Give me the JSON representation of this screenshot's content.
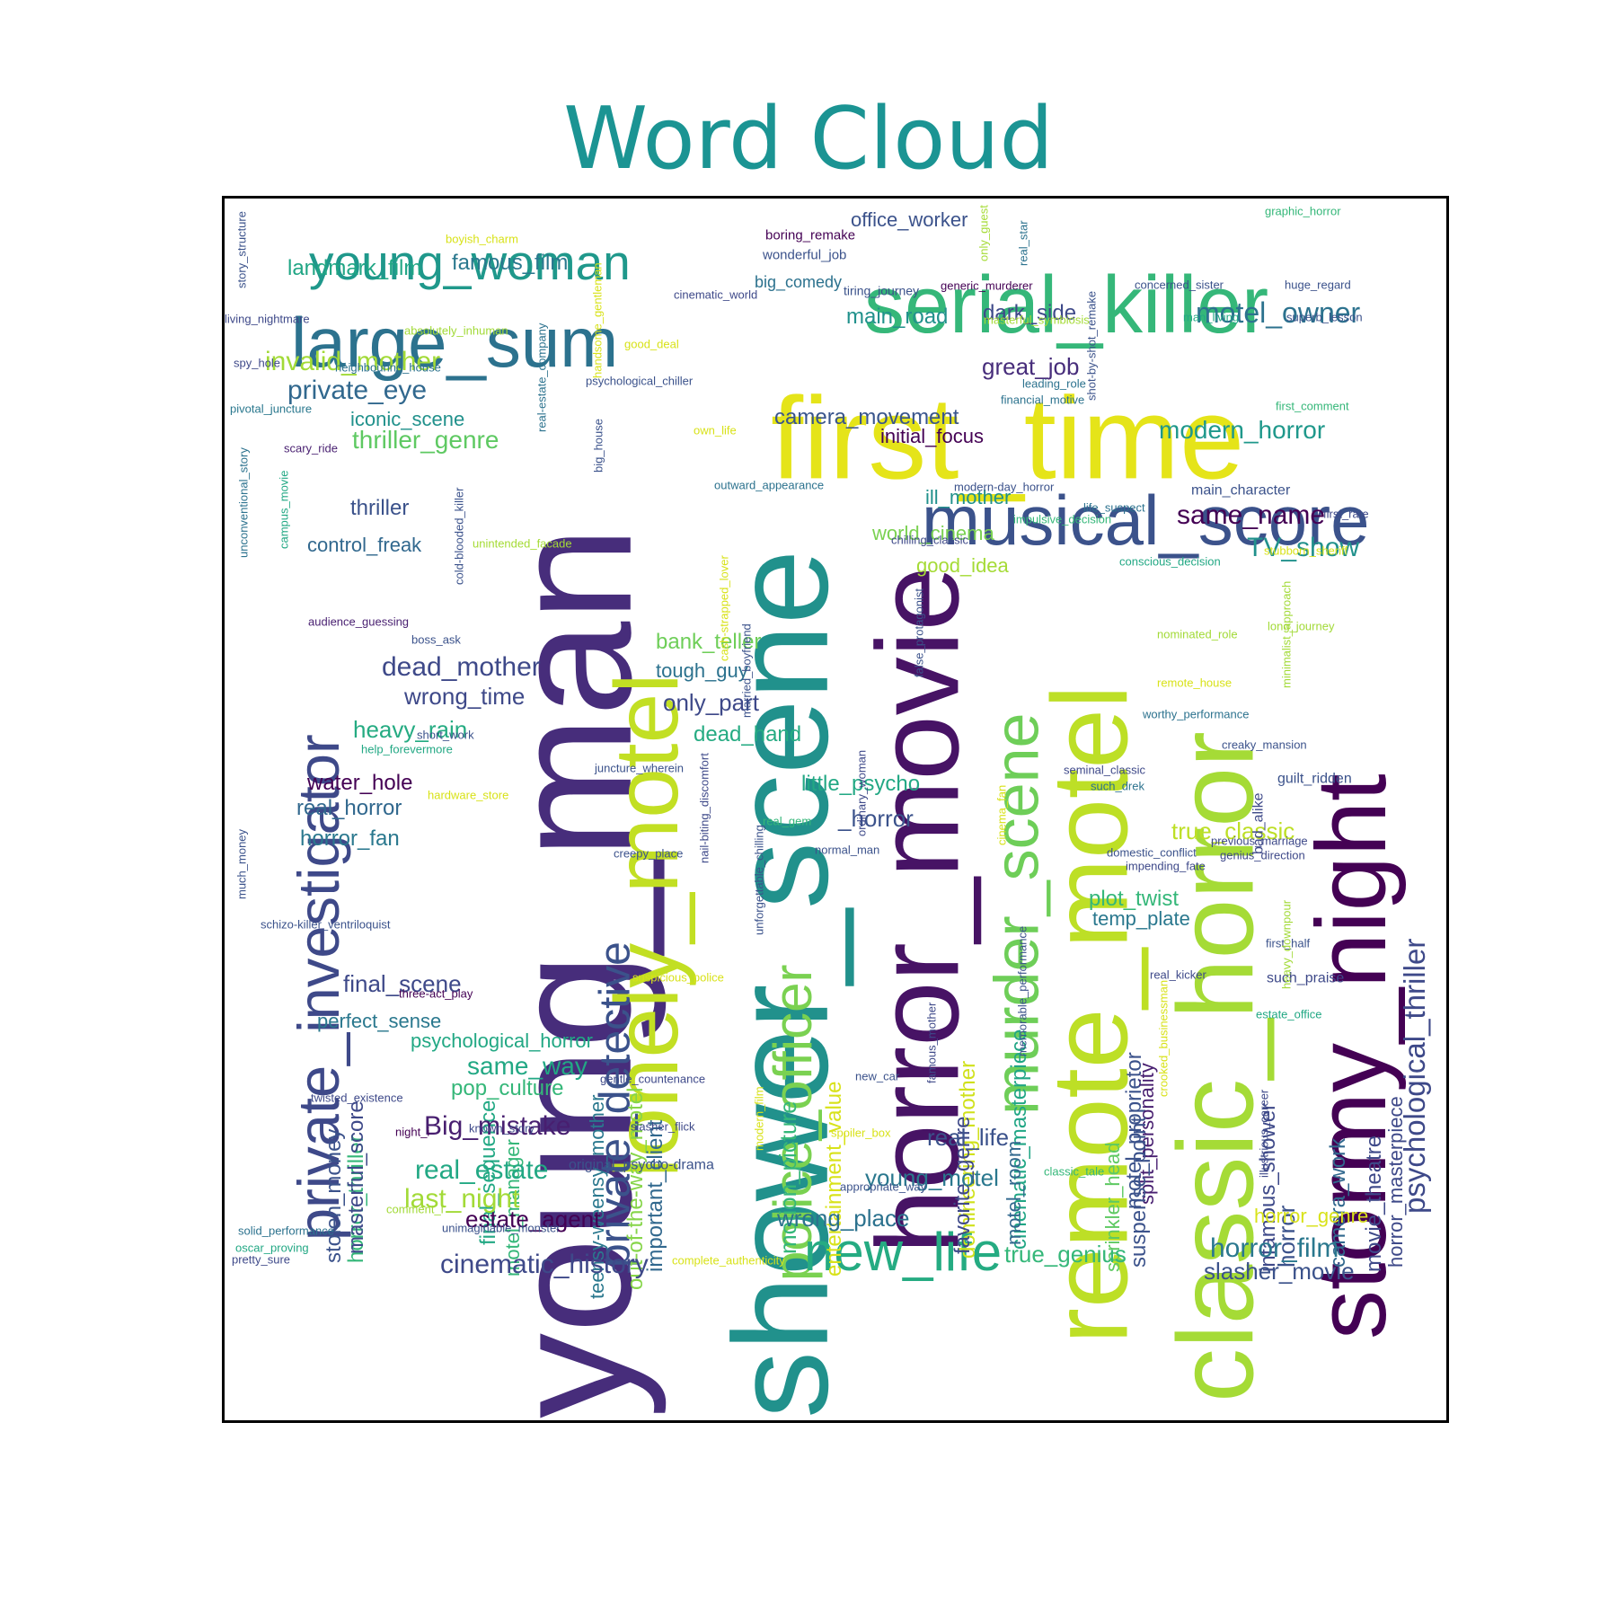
{
  "title": "Word Cloud",
  "words": [
    {
      "text": "shower_scene",
      "color": "#21918c"
    },
    {
      "text": "young_man",
      "color": "#472d7b"
    },
    {
      "text": "first_time",
      "color": "#e5e419"
    },
    {
      "text": "horror_movie",
      "color": "#471365"
    },
    {
      "text": "remote_motel",
      "color": "#bddf26"
    },
    {
      "text": "classic_horror",
      "color": "#a5db36"
    },
    {
      "text": "stormy_night",
      "color": "#440154"
    },
    {
      "text": "lonely_motel",
      "color": "#c2df23"
    },
    {
      "text": "serial_killer",
      "color": "#35b779"
    },
    {
      "text": "private_investigator",
      "color": "#3e4989"
    },
    {
      "text": "musical_score",
      "color": "#3b528b"
    },
    {
      "text": "large_sum",
      "color": "#2c728e"
    },
    {
      "text": "murder_scene",
      "color": "#6ece58"
    },
    {
      "text": "police_officer",
      "color": "#7ad151"
    },
    {
      "text": "private_detective",
      "color": "#3b528b"
    },
    {
      "text": "young_woman",
      "color": "#1f988b"
    },
    {
      "text": "new_life",
      "color": "#25ab82"
    },
    {
      "text": "psychological_thriller",
      "color": "#3e4989"
    },
    {
      "text": "motel_owner",
      "color": "#2c728e"
    },
    {
      "text": "invalid_mother",
      "color": "#a2da37"
    },
    {
      "text": "private_eye",
      "color": "#31688e"
    },
    {
      "text": "modern_horror",
      "color": "#1f988b"
    },
    {
      "text": "same_name",
      "color": "#440154"
    },
    {
      "text": "camera_movement",
      "color": "#39558c"
    },
    {
      "text": "thriller_genre",
      "color": "#5ec962"
    },
    {
      "text": "dead_mother",
      "color": "#3e4989"
    },
    {
      "text": "motion_picture",
      "color": "#35b779"
    },
    {
      "text": "entertainment_value",
      "color": "#d8e219"
    },
    {
      "text": "cinematic_masterpiece",
      "color": "#21a685"
    },
    {
      "text": "domineering_mother",
      "color": "#d0e11c"
    },
    {
      "text": "favorite_genre",
      "color": "#3e4989"
    },
    {
      "text": "motel_proprietor",
      "color": "#3b528b"
    },
    {
      "text": "split_personality",
      "color": "#481f70"
    },
    {
      "text": "horror_thriller",
      "color": "#35b779"
    },
    {
      "text": "stolen_money",
      "color": "#3b528b"
    },
    {
      "text": "final_sequence",
      "color": "#22a884"
    },
    {
      "text": "teensy-weensy_mother",
      "color": "#2a788e"
    },
    {
      "text": "out-of-the-way_motel",
      "color": "#86d549"
    },
    {
      "text": "important_client",
      "color": "#31688e"
    },
    {
      "text": "motel_manager",
      "color": "#35b779"
    },
    {
      "text": "masterful_score",
      "color": "#3e4989"
    },
    {
      "text": "infamous_shower",
      "color": "#3e4989"
    },
    {
      "text": "suspense_point",
      "color": "#3b528b"
    },
    {
      "text": "sprinkler_head",
      "color": "#5ec962"
    },
    {
      "text": "camera_work",
      "color": "#31688e"
    },
    {
      "text": "movie_theatre",
      "color": "#3e4989"
    },
    {
      "text": "horror_masterpiece",
      "color": "#3e4989"
    },
    {
      "text": "motel_room",
      "color": "#31688e"
    },
    {
      "text": "horror",
      "color": "#3b528b"
    },
    {
      "text": "TV_show",
      "color": "#21918c"
    },
    {
      "text": "landmark_film",
      "color": "#21a685"
    },
    {
      "text": "famous_film",
      "color": "#2a788e"
    },
    {
      "text": "main_road",
      "color": "#21918c"
    },
    {
      "text": "dark_side",
      "color": "#3e4989"
    },
    {
      "text": "great_job",
      "color": "#472d7b"
    },
    {
      "text": "office_worker",
      "color": "#3b528b"
    },
    {
      "text": "initial_focus",
      "color": "#440154"
    },
    {
      "text": "ill_mother",
      "color": "#21918c"
    },
    {
      "text": "world_cinema",
      "color": "#7ad151"
    },
    {
      "text": "good_idea",
      "color": "#a5db36"
    },
    {
      "text": "iconic_scene",
      "color": "#21918c"
    },
    {
      "text": "thriller",
      "color": "#3b528b"
    },
    {
      "text": "control_freak",
      "color": "#31688e"
    },
    {
      "text": "bank_teller",
      "color": "#6ece58"
    },
    {
      "text": "tough_guy",
      "color": "#2c728e"
    },
    {
      "text": "only_part",
      "color": "#3e4989"
    },
    {
      "text": "wrong_time",
      "color": "#3e4989"
    },
    {
      "text": "dead_hand",
      "color": "#25ab82"
    },
    {
      "text": "heavy_rain",
      "color": "#25ab82"
    },
    {
      "text": "little_psycho",
      "color": "#22a884"
    },
    {
      "text": "_horror",
      "color": "#3b528b"
    },
    {
      "text": "water_hole",
      "color": "#440154"
    },
    {
      "text": "real_horror",
      "color": "#31688e"
    },
    {
      "text": "horror_fan",
      "color": "#2a788e"
    },
    {
      "text": "true_classic",
      "color": "#bddf26"
    },
    {
      "text": "plot_twist",
      "color": "#35b779"
    },
    {
      "text": "temp_plate",
      "color": "#2a788e"
    },
    {
      "text": "final_scene",
      "color": "#3e4989"
    },
    {
      "text": "perfect_sense",
      "color": "#2a788e"
    },
    {
      "text": "psychological_horror",
      "color": "#22a884"
    },
    {
      "text": "same_way",
      "color": "#22a884"
    },
    {
      "text": "pop_culture",
      "color": "#35b779"
    },
    {
      "text": "Big_mistake",
      "color": "#481f70"
    },
    {
      "text": "real_estate",
      "color": "#22a884"
    },
    {
      "text": "last_night",
      "color": "#a2da37"
    },
    {
      "text": "estate_agent",
      "color": "#440154"
    },
    {
      "text": "cinematic_history",
      "color": "#3e4989"
    },
    {
      "text": "wrong_place",
      "color": "#2c728e"
    },
    {
      "text": "young_motel",
      "color": "#2a788e"
    },
    {
      "text": "real_life",
      "color": "#3b528b"
    },
    {
      "text": "true_genius",
      "color": "#35b779"
    },
    {
      "text": "horror_film",
      "color": "#2a788e"
    },
    {
      "text": "slasher_movie",
      "color": "#3b528b"
    },
    {
      "text": "horror_genre",
      "color": "#d8e219"
    },
    {
      "text": "boring_remake",
      "color": "#440154"
    },
    {
      "text": "wonderful_job",
      "color": "#3b528b"
    },
    {
      "text": "big_comedy",
      "color": "#2c728e"
    },
    {
      "text": "tiring_journey",
      "color": "#3b528b"
    },
    {
      "text": "generic_murderer",
      "color": "#440154"
    },
    {
      "text": "concerned_sister",
      "color": "#3b528b"
    },
    {
      "text": "huge_regard",
      "color": "#3b528b"
    },
    {
      "text": "graphic_horror",
      "color": "#35b779"
    },
    {
      "text": "cinematic_world",
      "color": "#3e4989"
    },
    {
      "text": "masterful_symbiosis",
      "color": "#a5db36"
    },
    {
      "text": "man_living",
      "color": "#22a884"
    },
    {
      "text": "superb_lesson",
      "color": "#3b528b"
    },
    {
      "text": "boyish_charm",
      "color": "#d8e219"
    },
    {
      "text": "story_structure",
      "color": "#3b528b"
    },
    {
      "text": "living_nightmare",
      "color": "#3e4989"
    },
    {
      "text": "absolutely_inhuman",
      "color": "#a2da37"
    },
    {
      "text": "spy_hole",
      "color": "#3e4989"
    },
    {
      "text": "neighbouring_house",
      "color": "#2c728e"
    },
    {
      "text": "pivotal_juncture",
      "color": "#2a788e"
    },
    {
      "text": "scary_ride",
      "color": "#481f70"
    },
    {
      "text": "good_deal",
      "color": "#d8e219"
    },
    {
      "text": "psychological_chiller",
      "color": "#3b528b"
    },
    {
      "text": "leading_role",
      "color": "#2c728e"
    },
    {
      "text": "financial_motive",
      "color": "#2c728e"
    },
    {
      "text": "first_comment",
      "color": "#35b779"
    },
    {
      "text": "own_life",
      "color": "#d8e219"
    },
    {
      "text": "outward_appearance",
      "color": "#2c728e"
    },
    {
      "text": "modern-day_horror",
      "color": "#3b528b"
    },
    {
      "text": "main_character",
      "color": "#3b528b"
    },
    {
      "text": "first_rate",
      "color": "#3e4989"
    },
    {
      "text": "life_suspect",
      "color": "#2c728e"
    },
    {
      "text": "impulsive_decision",
      "color": "#35b779"
    },
    {
      "text": "chilling_classic",
      "color": "#3e4989"
    },
    {
      "text": "stubborn_sheriff",
      "color": "#d8e219"
    },
    {
      "text": "conscious_decision",
      "color": "#22a884"
    },
    {
      "text": "unintended_facade",
      "color": "#a5db36"
    },
    {
      "text": "audience_guessing",
      "color": "#481f70"
    },
    {
      "text": "boss_ask",
      "color": "#3b528b"
    },
    {
      "text": "nominated_role",
      "color": "#a2da37"
    },
    {
      "text": "long_journey",
      "color": "#a2da37"
    },
    {
      "text": "remote_house",
      "color": "#d8e219"
    },
    {
      "text": "worthy_performance",
      "color": "#2c728e"
    },
    {
      "text": "short_work",
      "color": "#3b528b"
    },
    {
      "text": "help_forevermore",
      "color": "#22a884"
    },
    {
      "text": "creaky_mansion",
      "color": "#3b528b"
    },
    {
      "text": "juncture_wherein",
      "color": "#3b528b"
    },
    {
      "text": "seminal_classic",
      "color": "#3e4989"
    },
    {
      "text": "guilt_ridden",
      "color": "#3b528b"
    },
    {
      "text": "hardware_store",
      "color": "#d8e219"
    },
    {
      "text": "such_drek",
      "color": "#2c728e"
    },
    {
      "text": "real_gem",
      "color": "#35b779"
    },
    {
      "text": "creepy_place",
      "color": "#3b528b"
    },
    {
      "text": "normal_man",
      "color": "#3b528b"
    },
    {
      "text": "previous_marriage",
      "color": "#3e4989"
    },
    {
      "text": "domestic_conflict",
      "color": "#3b528b"
    },
    {
      "text": "genius_direction",
      "color": "#3e4989"
    },
    {
      "text": "impending_fate",
      "color": "#3e4989"
    },
    {
      "text": "schizo-killer_ventriloquist",
      "color": "#3b528b"
    },
    {
      "text": "first_half",
      "color": "#3b528b"
    },
    {
      "text": "three-act_play",
      "color": "#440154"
    },
    {
      "text": "suspicious_police",
      "color": "#d8e219"
    },
    {
      "text": "real_kicker",
      "color": "#3e4989"
    },
    {
      "text": "such_praise",
      "color": "#3e4989"
    },
    {
      "text": "estate_office",
      "color": "#22a884"
    },
    {
      "text": "gentle_countenance",
      "color": "#3e4989"
    },
    {
      "text": "new_car",
      "color": "#3b528b"
    },
    {
      "text": "twisted_existence",
      "color": "#3e4989"
    },
    {
      "text": "known_story",
      "color": "#3e4989"
    },
    {
      "text": "night_i",
      "color": "#440154"
    },
    {
      "text": "slasher_flick",
      "color": "#3e4989"
    },
    {
      "text": "spoiler_box",
      "color": "#d8e219"
    },
    {
      "text": "original_psycho-drama",
      "color": "#3b528b"
    },
    {
      "text": "appropriate_way",
      "color": "#3b528b"
    },
    {
      "text": "classic_tale",
      "color": "#35b779"
    },
    {
      "text": "comment_i",
      "color": "#a2da37"
    },
    {
      "text": "unimaginable_monster",
      "color": "#3b528b"
    },
    {
      "text": "solid_performance",
      "color": "#2c728e"
    },
    {
      "text": "oscar_proving",
      "color": "#22a884"
    },
    {
      "text": "pretty_sure",
      "color": "#3e4989"
    },
    {
      "text": "complete_authenticity",
      "color": "#d8e219"
    },
    {
      "text": "only_guest",
      "color": "#a5db36"
    },
    {
      "text": "real_star",
      "color": "#2c728e"
    },
    {
      "text": "shot-by-shot_remake",
      "color": "#3b528b"
    },
    {
      "text": "handsome_gentleman",
      "color": "#d8e219"
    },
    {
      "text": "real-estate_company",
      "color": "#2c728e"
    },
    {
      "text": "big_house",
      "color": "#3b528b"
    },
    {
      "text": "unconventional_story",
      "color": "#2c728e"
    },
    {
      "text": "campus_movie",
      "color": "#22a884"
    },
    {
      "text": "cold-blooded_killer",
      "color": "#3b528b"
    },
    {
      "text": "cash-strapped_lover",
      "color": "#d8e219"
    },
    {
      "text": "married_boyfriend",
      "color": "#3b528b"
    },
    {
      "text": "false_protagonist",
      "color": "#3b528b"
    },
    {
      "text": "minimalist_approach",
      "color": "#a2da37"
    },
    {
      "text": "nail-biting_discomfort",
      "color": "#3e4989"
    },
    {
      "text": "unforgettable_chilling",
      "color": "#3b528b"
    },
    {
      "text": "ordinary_woman",
      "color": "#3e4989"
    },
    {
      "text": "cinema_fan",
      "color": "#d8e219"
    },
    {
      "text": "bad_alike",
      "color": "#3e4989"
    },
    {
      "text": "much_money",
      "color": "#3b528b"
    },
    {
      "text": "memorable_performance",
      "color": "#3b528b"
    },
    {
      "text": "heavy_downpour",
      "color": "#a2da37"
    },
    {
      "text": "modern_film",
      "color": "#d8e219"
    },
    {
      "text": "famous_mother",
      "color": "#3e4989"
    },
    {
      "text": "crooked_businessman",
      "color": "#d8e219"
    },
    {
      "text": "illustrious_career",
      "color": "#3e4989"
    }
  ]
}
